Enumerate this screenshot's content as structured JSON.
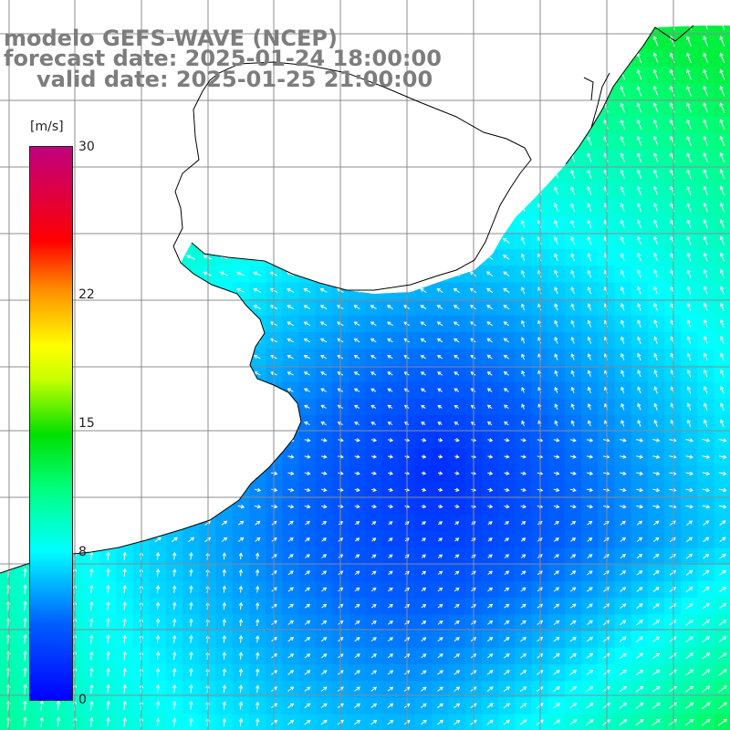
{
  "title": {
    "line1": "modelo GEFS-WAVE (NCEP)",
    "line2": "forecast date: 2025-01-24 18:00:00",
    "line3": "valid date: 2025-01-25 21:00:00"
  },
  "colorbar": {
    "unit": "[m/s]",
    "min": 0,
    "max": 30,
    "ticks": [
      {
        "label": "30",
        "value": 30
      },
      {
        "label": "22",
        "value": 22
      },
      {
        "label": "15",
        "value": 15
      },
      {
        "label": "8",
        "value": 8
      },
      {
        "label": "0",
        "value": 0
      }
    ],
    "colors": [
      "#0000ff",
      "#0080ff",
      "#00ffff",
      "#00ff00",
      "#ffff00",
      "#ff8000",
      "#ff0000",
      "#c0007f"
    ]
  },
  "map": {
    "variable": "wind speed and direction",
    "land_color": "#ffffff",
    "grid_color": "#8c8c8c",
    "coast_color": "#000000"
  }
}
